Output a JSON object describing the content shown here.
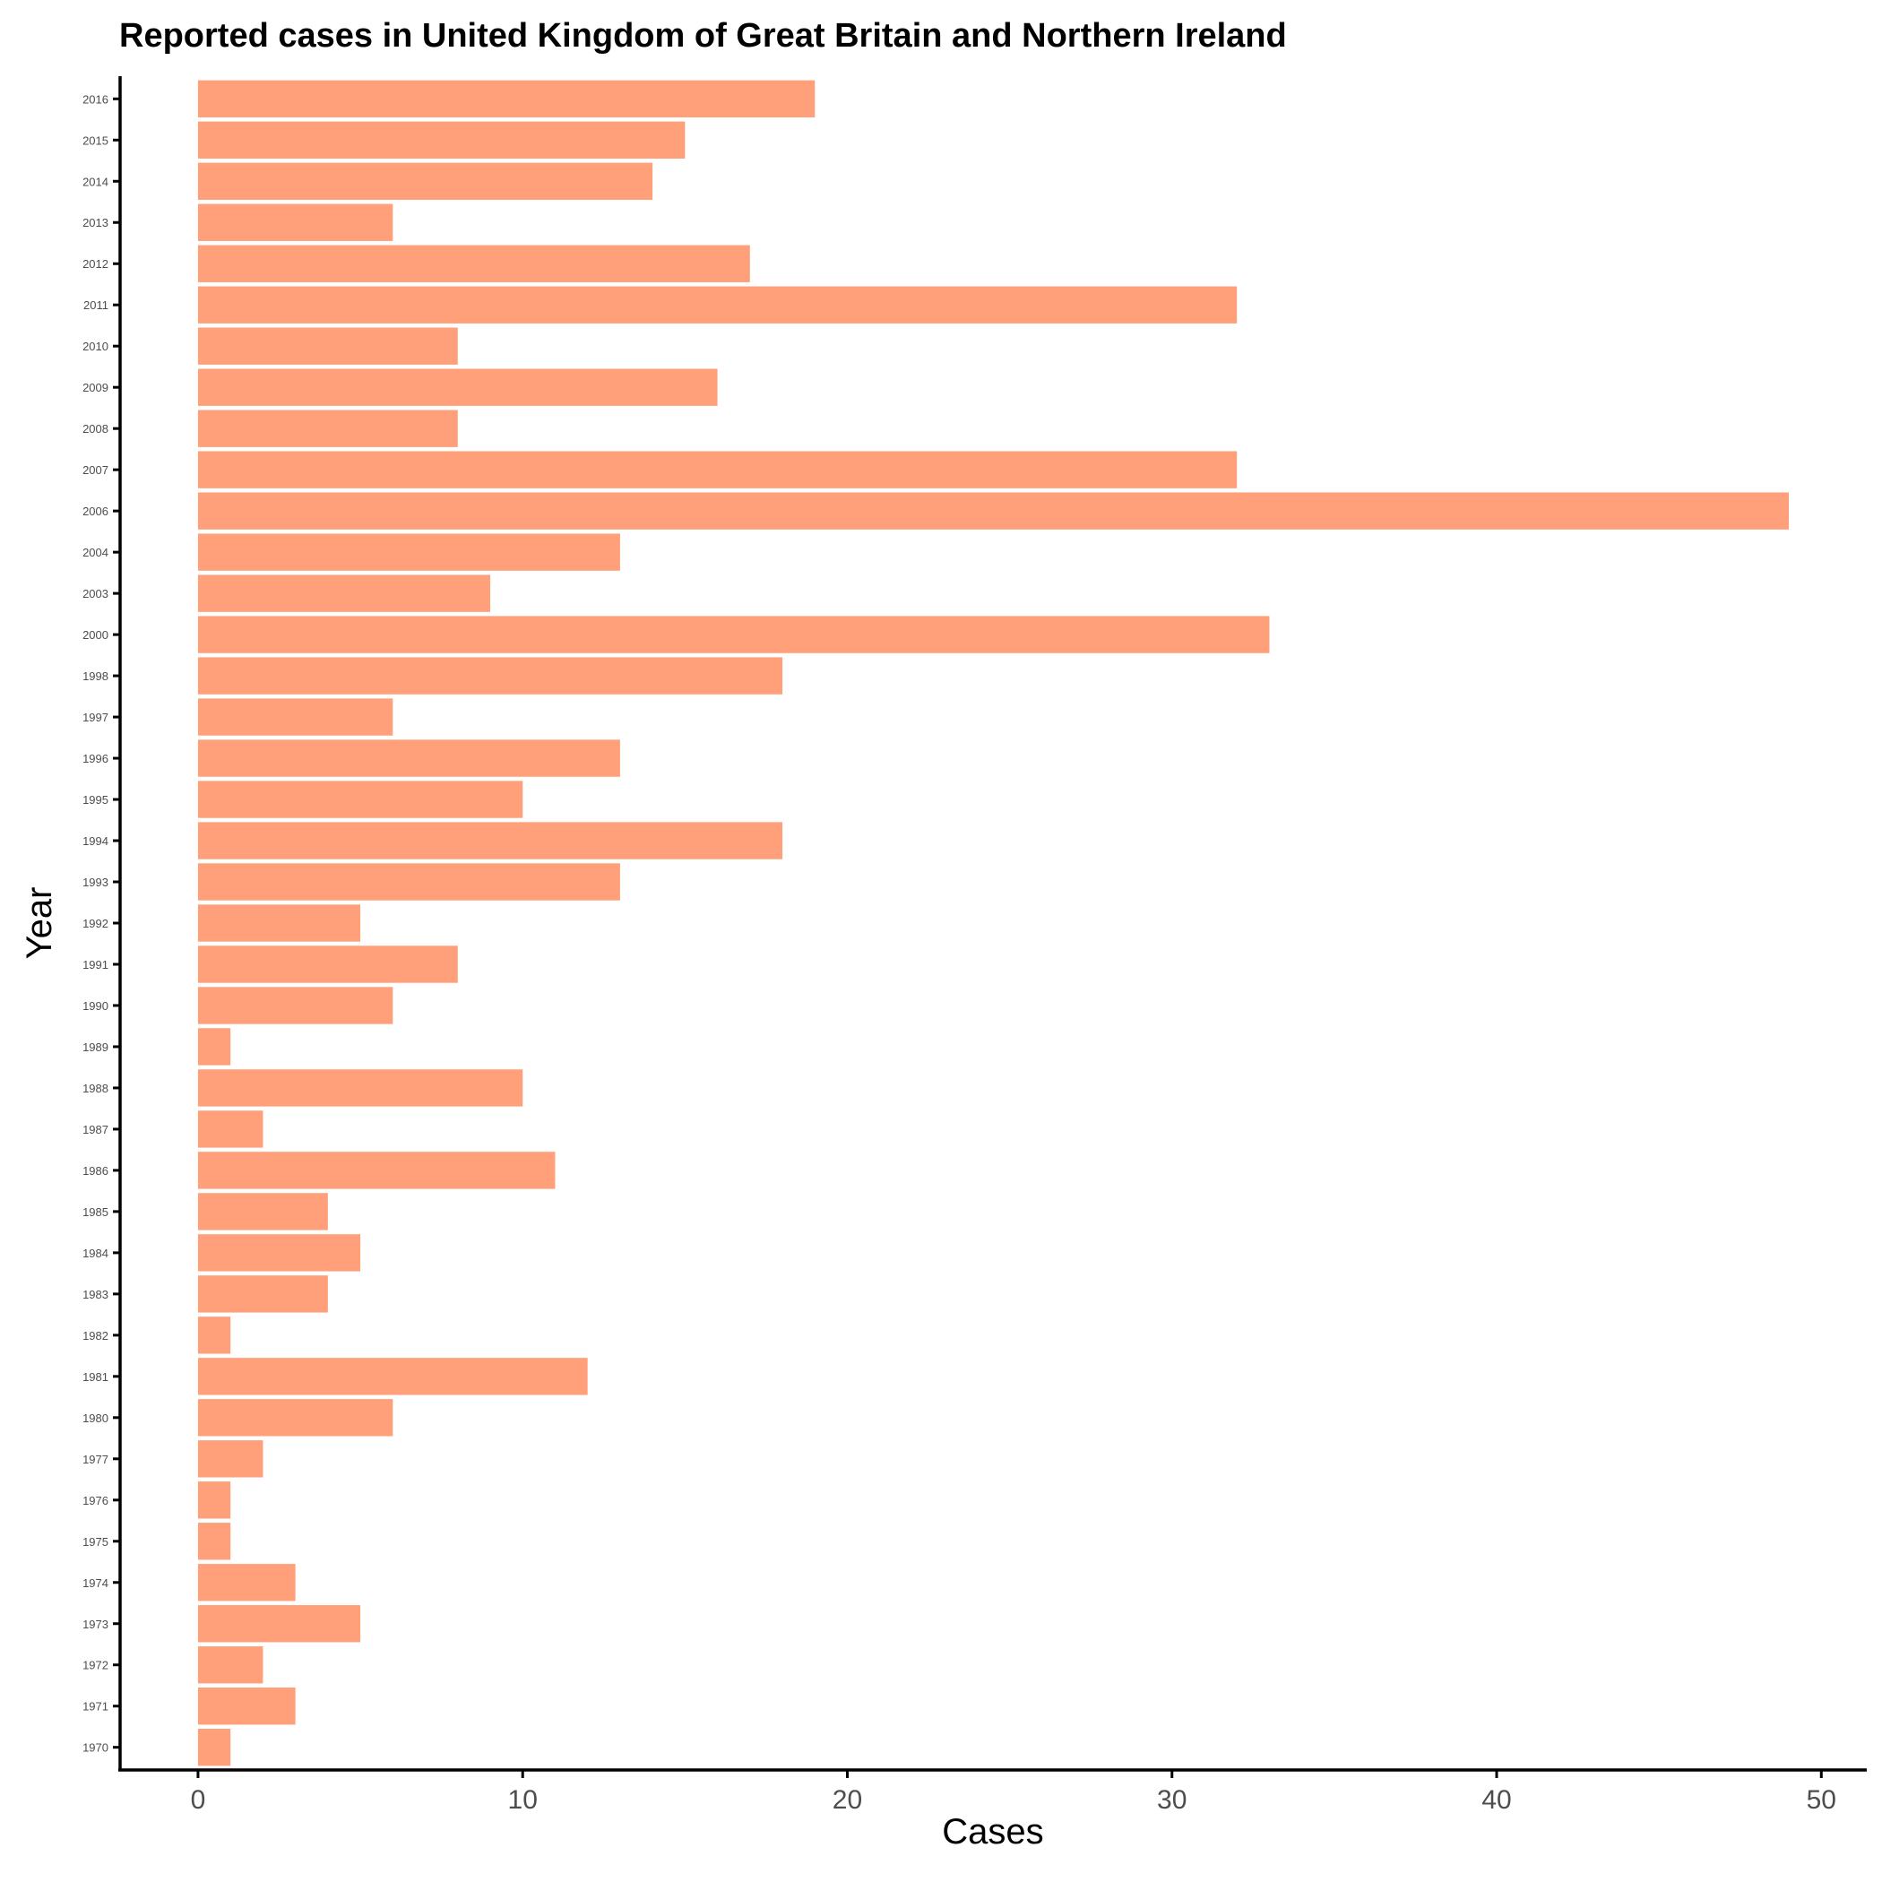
{
  "chart_data": {
    "type": "bar",
    "orientation": "horizontal",
    "title": "Reported cases in United Kingdom of Great Britain and Northern Ireland",
    "xlabel": "Cases",
    "ylabel": "Year",
    "xlim": [
      -2.4,
      51.4
    ],
    "xticks": [
      0,
      10,
      20,
      30,
      40,
      50
    ],
    "categories": [
      "1970",
      "1971",
      "1972",
      "1973",
      "1974",
      "1975",
      "1976",
      "1977",
      "1980",
      "1981",
      "1982",
      "1983",
      "1984",
      "1985",
      "1986",
      "1987",
      "1988",
      "1989",
      "1990",
      "1991",
      "1992",
      "1993",
      "1994",
      "1995",
      "1996",
      "1997",
      "1998",
      "2000",
      "2003",
      "2004",
      "2006",
      "2007",
      "2008",
      "2009",
      "2010",
      "2011",
      "2012",
      "2013",
      "2014",
      "2015",
      "2016"
    ],
    "values": [
      1,
      3,
      2,
      5,
      3,
      1,
      1,
      2,
      6,
      12,
      1,
      4,
      5,
      4,
      11,
      2,
      10,
      1,
      6,
      8,
      5,
      13,
      18,
      10,
      13,
      6,
      18,
      33,
      9,
      13,
      49,
      32,
      8,
      16,
      8,
      32,
      17,
      6,
      14,
      15,
      19
    ],
    "bar_color": "#FFA07A",
    "grid": false,
    "legend": "none"
  }
}
